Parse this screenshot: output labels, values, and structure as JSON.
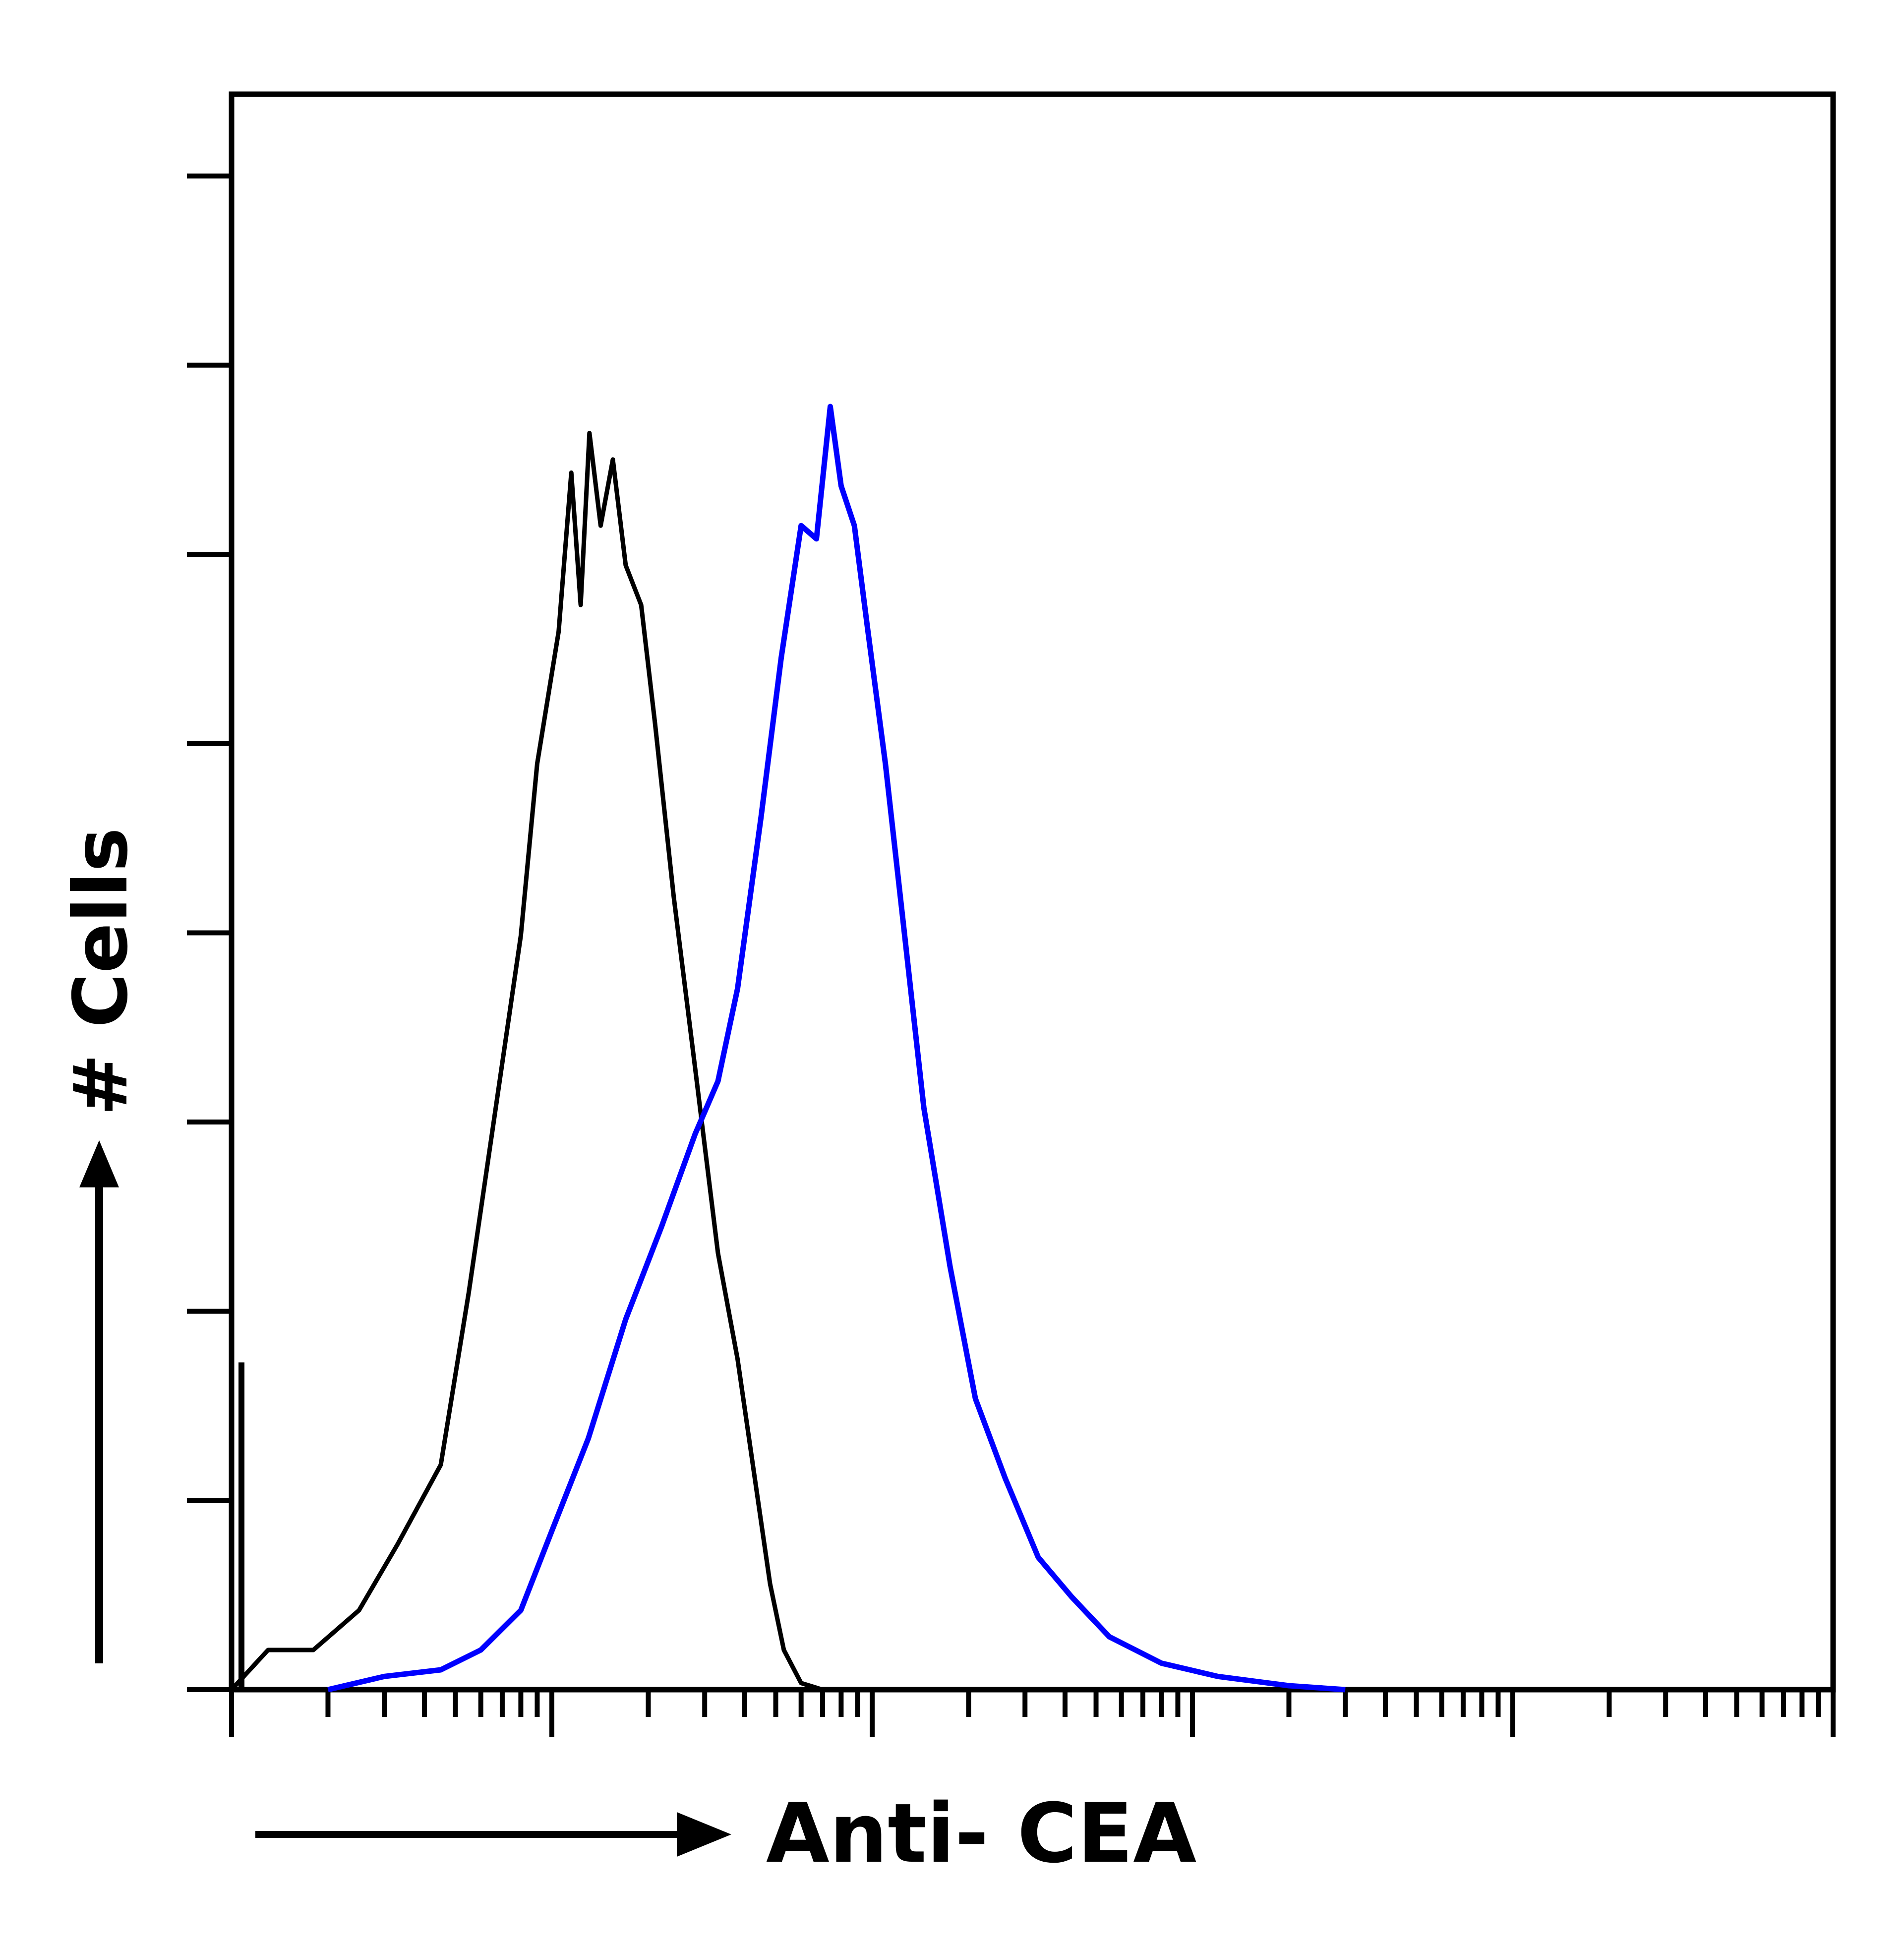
{
  "chart_data": {
    "type": "line",
    "title": "",
    "xlabel": "Anti- CEA",
    "ylabel": "# Cells",
    "x_scale": "log",
    "xlim": [
      1,
      100000
    ],
    "ylim": [
      0,
      100
    ],
    "grid": false,
    "legend": "none",
    "series": [
      {
        "color": "#000000",
        "points": [
          [
            1.0,
            0
          ],
          [
            1.3,
            3
          ],
          [
            1.8,
            3
          ],
          [
            2.5,
            6
          ],
          [
            3.3,
            11
          ],
          [
            4.5,
            17
          ],
          [
            5.5,
            30
          ],
          [
            6.5,
            42
          ],
          [
            8.0,
            57
          ],
          [
            9.0,
            70
          ],
          [
            10.5,
            80
          ],
          [
            11.5,
            92
          ],
          [
            12.3,
            82
          ],
          [
            13.1,
            95
          ],
          [
            14.2,
            88
          ],
          [
            15.5,
            93
          ],
          [
            17.0,
            85
          ],
          [
            19.0,
            82
          ],
          [
            21.0,
            73
          ],
          [
            24.0,
            60
          ],
          [
            28.0,
            47
          ],
          [
            33.0,
            33
          ],
          [
            38.0,
            25
          ],
          [
            43.0,
            16
          ],
          [
            48.0,
            8
          ],
          [
            53.0,
            3
          ],
          [
            60.0,
            0.5
          ],
          [
            70.0,
            0
          ]
        ]
      },
      {
        "color": "#0000ff",
        "points": [
          [
            2.0,
            0
          ],
          [
            3.0,
            1
          ],
          [
            4.5,
            1.5
          ],
          [
            6.0,
            3
          ],
          [
            8.0,
            6
          ],
          [
            10.0,
            12
          ],
          [
            13.0,
            19
          ],
          [
            17.0,
            28
          ],
          [
            22.0,
            35
          ],
          [
            28.0,
            42
          ],
          [
            33.0,
            46
          ],
          [
            38.0,
            53
          ],
          [
            45.0,
            66
          ],
          [
            52.0,
            78
          ],
          [
            60.0,
            88
          ],
          [
            67.0,
            87
          ],
          [
            74.0,
            97
          ],
          [
            80.0,
            91
          ],
          [
            88.0,
            88
          ],
          [
            97.0,
            80
          ],
          [
            110.0,
            70
          ],
          [
            125.0,
            58
          ],
          [
            145.0,
            44
          ],
          [
            175.0,
            32
          ],
          [
            210.0,
            22
          ],
          [
            260.0,
            16
          ],
          [
            330.0,
            10
          ],
          [
            420.0,
            7
          ],
          [
            550.0,
            4
          ],
          [
            800.0,
            2
          ],
          [
            1200.0,
            1
          ],
          [
            2000.0,
            0.3
          ],
          [
            3000.0,
            0
          ]
        ]
      }
    ]
  }
}
